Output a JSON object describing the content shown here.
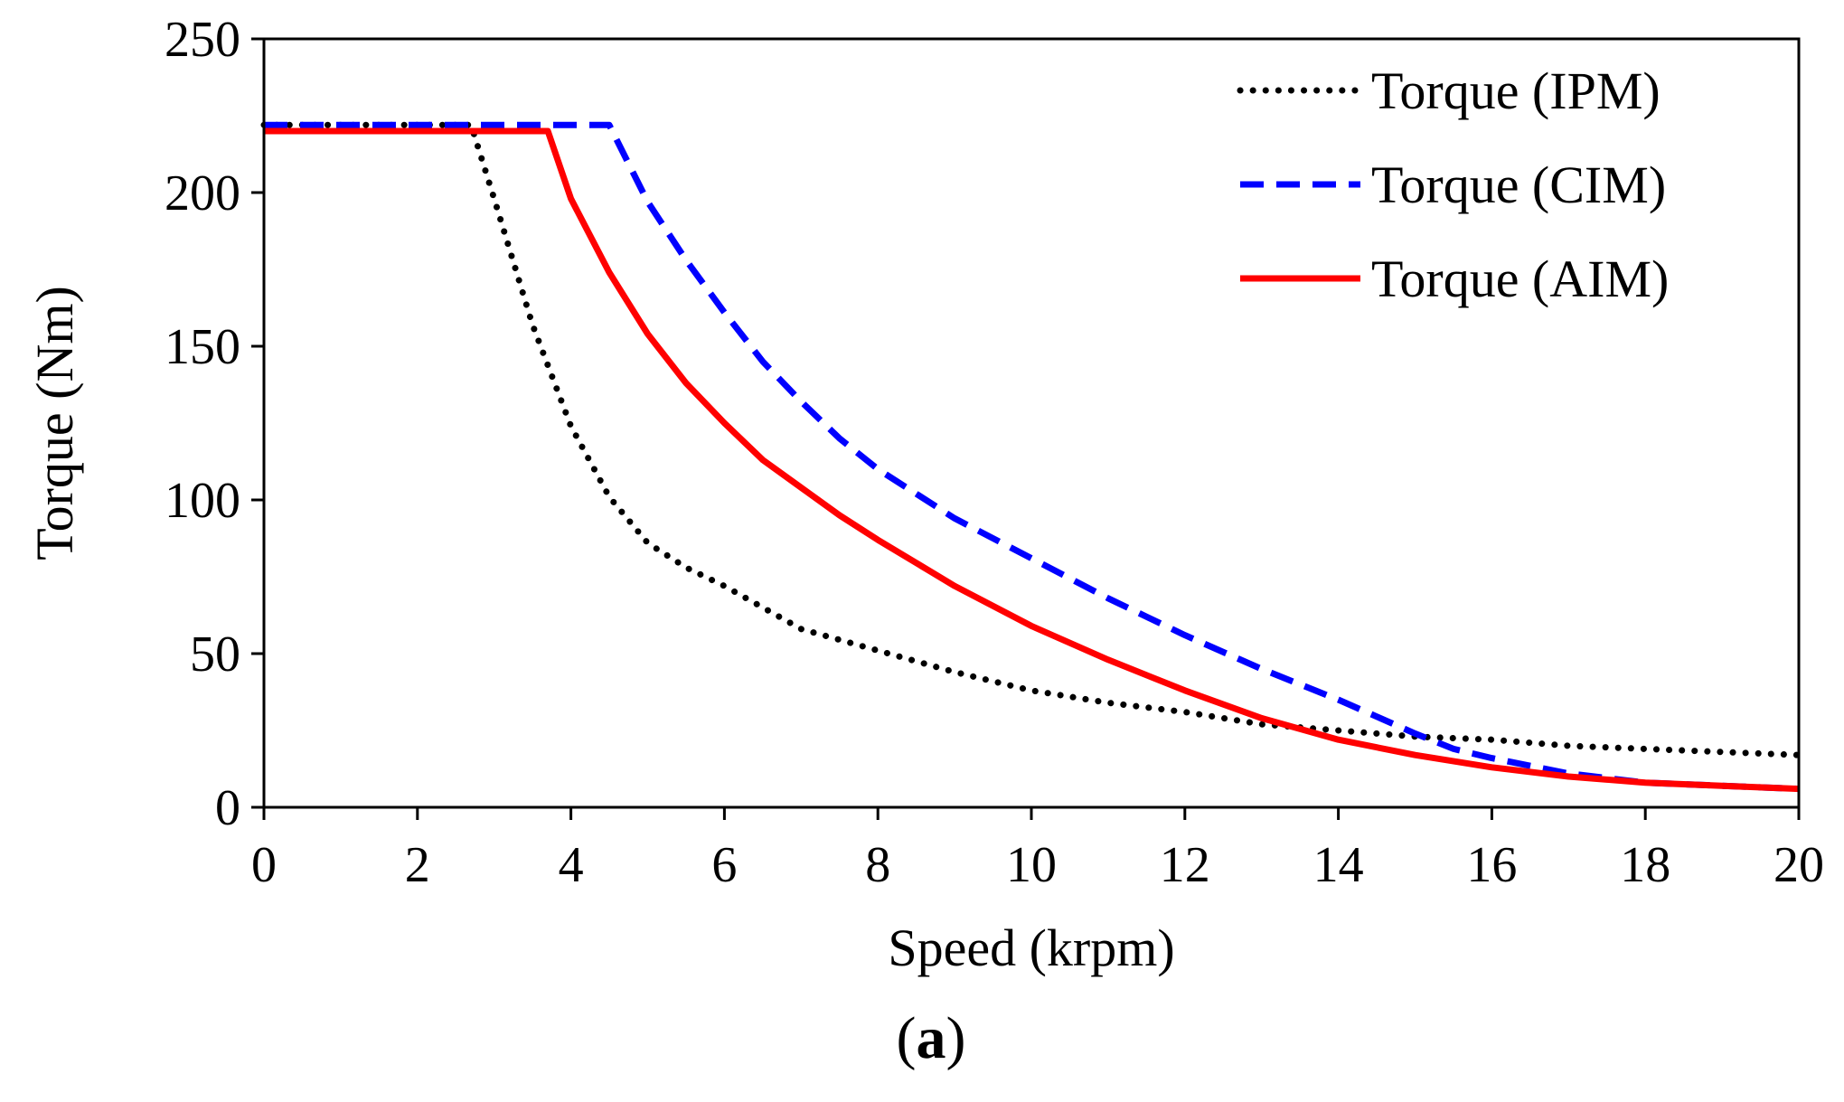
{
  "chart_data": {
    "type": "line",
    "title": "",
    "panel_label": "(a)",
    "panel_label_parts": [
      "(",
      "a",
      ")"
    ],
    "xlabel": "Speed (krpm)",
    "ylabel": "Torque (Nm)",
    "xlim": [
      0,
      20
    ],
    "ylim": [
      0,
      250
    ],
    "xticks": [
      0,
      2,
      4,
      6,
      8,
      10,
      12,
      14,
      16,
      18,
      20
    ],
    "yticks": [
      0,
      50,
      100,
      150,
      200,
      250
    ],
    "grid": false,
    "legend_position": "top-right",
    "series": [
      {
        "name": "Torque (IPM)",
        "color": "#000000",
        "style": "dotted",
        "x": [
          0,
          1,
          2,
          2.7,
          3,
          3.5,
          4,
          4.5,
          5,
          5.5,
          6,
          7,
          8,
          9,
          10,
          11,
          12,
          13,
          14,
          15,
          16,
          17,
          18,
          19,
          20
        ],
        "y": [
          222,
          222,
          222,
          222,
          198,
          157,
          124,
          101,
          86,
          78,
          72,
          58,
          51,
          44,
          38,
          34,
          31,
          27,
          25,
          23,
          22,
          20,
          19,
          18,
          17
        ]
      },
      {
        "name": "Torque (CIM)",
        "color": "#0000ff",
        "style": "dashed",
        "x": [
          0,
          1,
          2,
          3,
          4,
          4.5,
          5,
          5.5,
          6,
          6.5,
          7,
          7.5,
          8,
          9,
          10,
          11,
          12,
          13,
          14,
          15,
          15.5,
          16,
          17,
          18,
          19,
          20
        ],
        "y": [
          222,
          222,
          222,
          222,
          222,
          222,
          197,
          178,
          161,
          145,
          132,
          120,
          110,
          94,
          81,
          68,
          56,
          45,
          35,
          24,
          19,
          16,
          11,
          8,
          7,
          6
        ]
      },
      {
        "name": "Torque (AIM)",
        "color": "#ff0000",
        "style": "solid",
        "x": [
          0,
          1,
          2,
          3,
          3.7,
          4,
          4.5,
          5,
          5.5,
          6,
          6.5,
          7,
          7.5,
          8,
          9,
          10,
          11,
          12,
          13,
          14,
          15,
          16,
          17,
          18,
          19,
          20
        ],
        "y": [
          220,
          220,
          220,
          220,
          220,
          198,
          174,
          154,
          138,
          125,
          113,
          104,
          95,
          87,
          72,
          59,
          48,
          38,
          29,
          22,
          17,
          13,
          10,
          8,
          7,
          6
        ]
      }
    ]
  }
}
